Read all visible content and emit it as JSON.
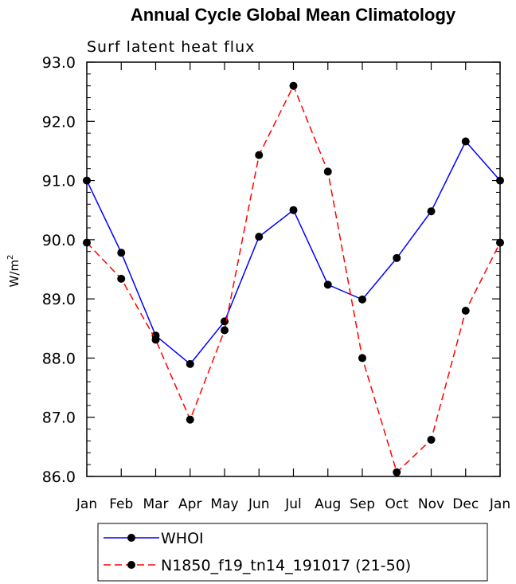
{
  "chart_data": {
    "type": "line",
    "title": "Annual Cycle Global Mean Climatology",
    "subtitle": "Surf latent heat flux",
    "ylabel": "W/m",
    "ylabel_sup": "2",
    "xlabel": "",
    "ylim": [
      86.0,
      93.0
    ],
    "yticks": [
      "86.0",
      "87.0",
      "88.0",
      "89.0",
      "90.0",
      "91.0",
      "92.0",
      "93.0"
    ],
    "categories": [
      "Jan",
      "Feb",
      "Mar",
      "Apr",
      "May",
      "Jun",
      "Jul",
      "Aug",
      "Sep",
      "Oct",
      "Nov",
      "Dec",
      "Jan"
    ],
    "series": [
      {
        "name": "WHOI",
        "color": "#0000ff",
        "dash": "solid",
        "values": [
          91.0,
          89.78,
          88.38,
          87.9,
          88.62,
          90.05,
          90.5,
          89.24,
          88.99,
          89.69,
          90.48,
          91.66,
          91.0
        ]
      },
      {
        "name": "N1850_f19_tn14_191017 (21-50)",
        "color": "#ff0000",
        "dash": "dashed",
        "values": [
          89.95,
          89.34,
          88.31,
          86.96,
          88.47,
          91.43,
          92.6,
          91.15,
          88.0,
          86.07,
          86.62,
          88.8,
          89.95
        ]
      }
    ],
    "legend_position": "bottom"
  }
}
